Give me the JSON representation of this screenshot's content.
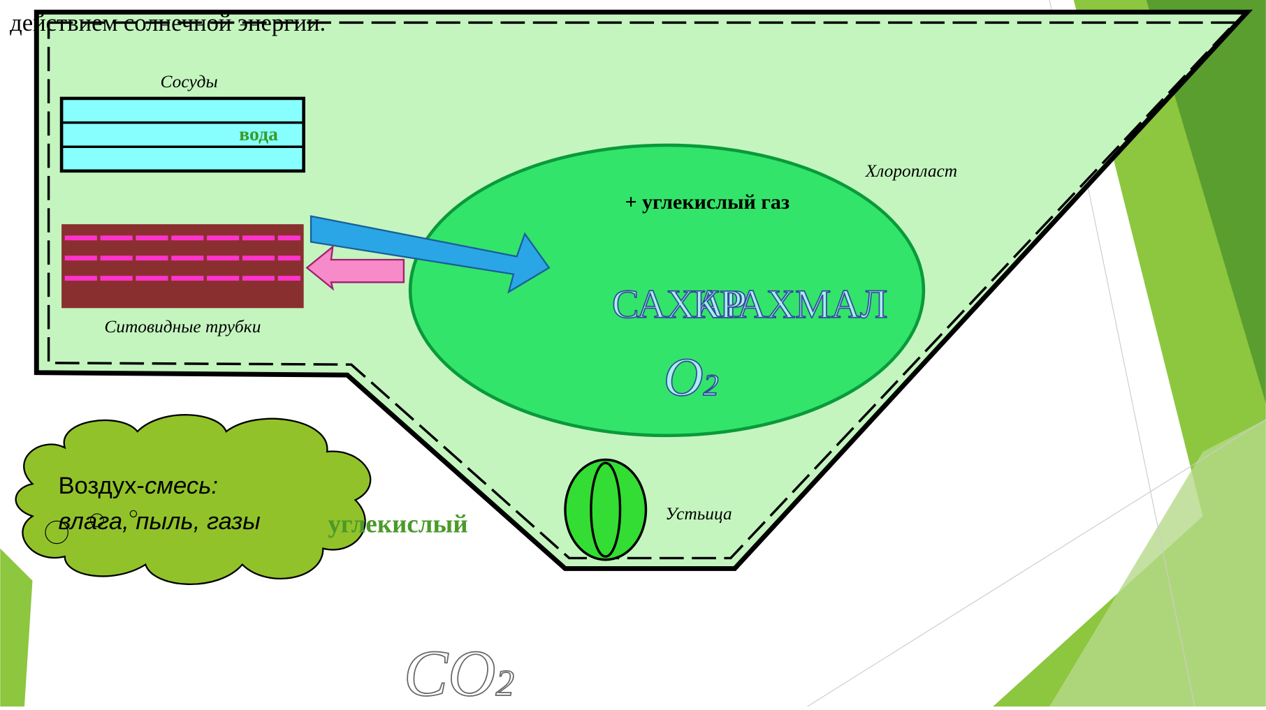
{
  "top_text": "действием солнечной энергии.",
  "labels": {
    "vessels": "Сосуды",
    "water": "вода",
    "sieve_tubes": "Ситовидные трубки",
    "chloroplast": "Хлоропласт",
    "stoma": "Устьица"
  },
  "chloroplast": {
    "input": "+ углекислый газ",
    "sugar": "САХАР",
    "starch": "КРАХМАЛ",
    "oxygen": {
      "symbol": "O",
      "index": "2"
    }
  },
  "cloud": {
    "air": "Воздух-",
    "mix": "смесь:",
    "items": "влага, пыль, газы"
  },
  "carbon_dioxide_label": "углекислый",
  "carbon_dioxide": {
    "symbol": "CO",
    "index": "2"
  }
}
